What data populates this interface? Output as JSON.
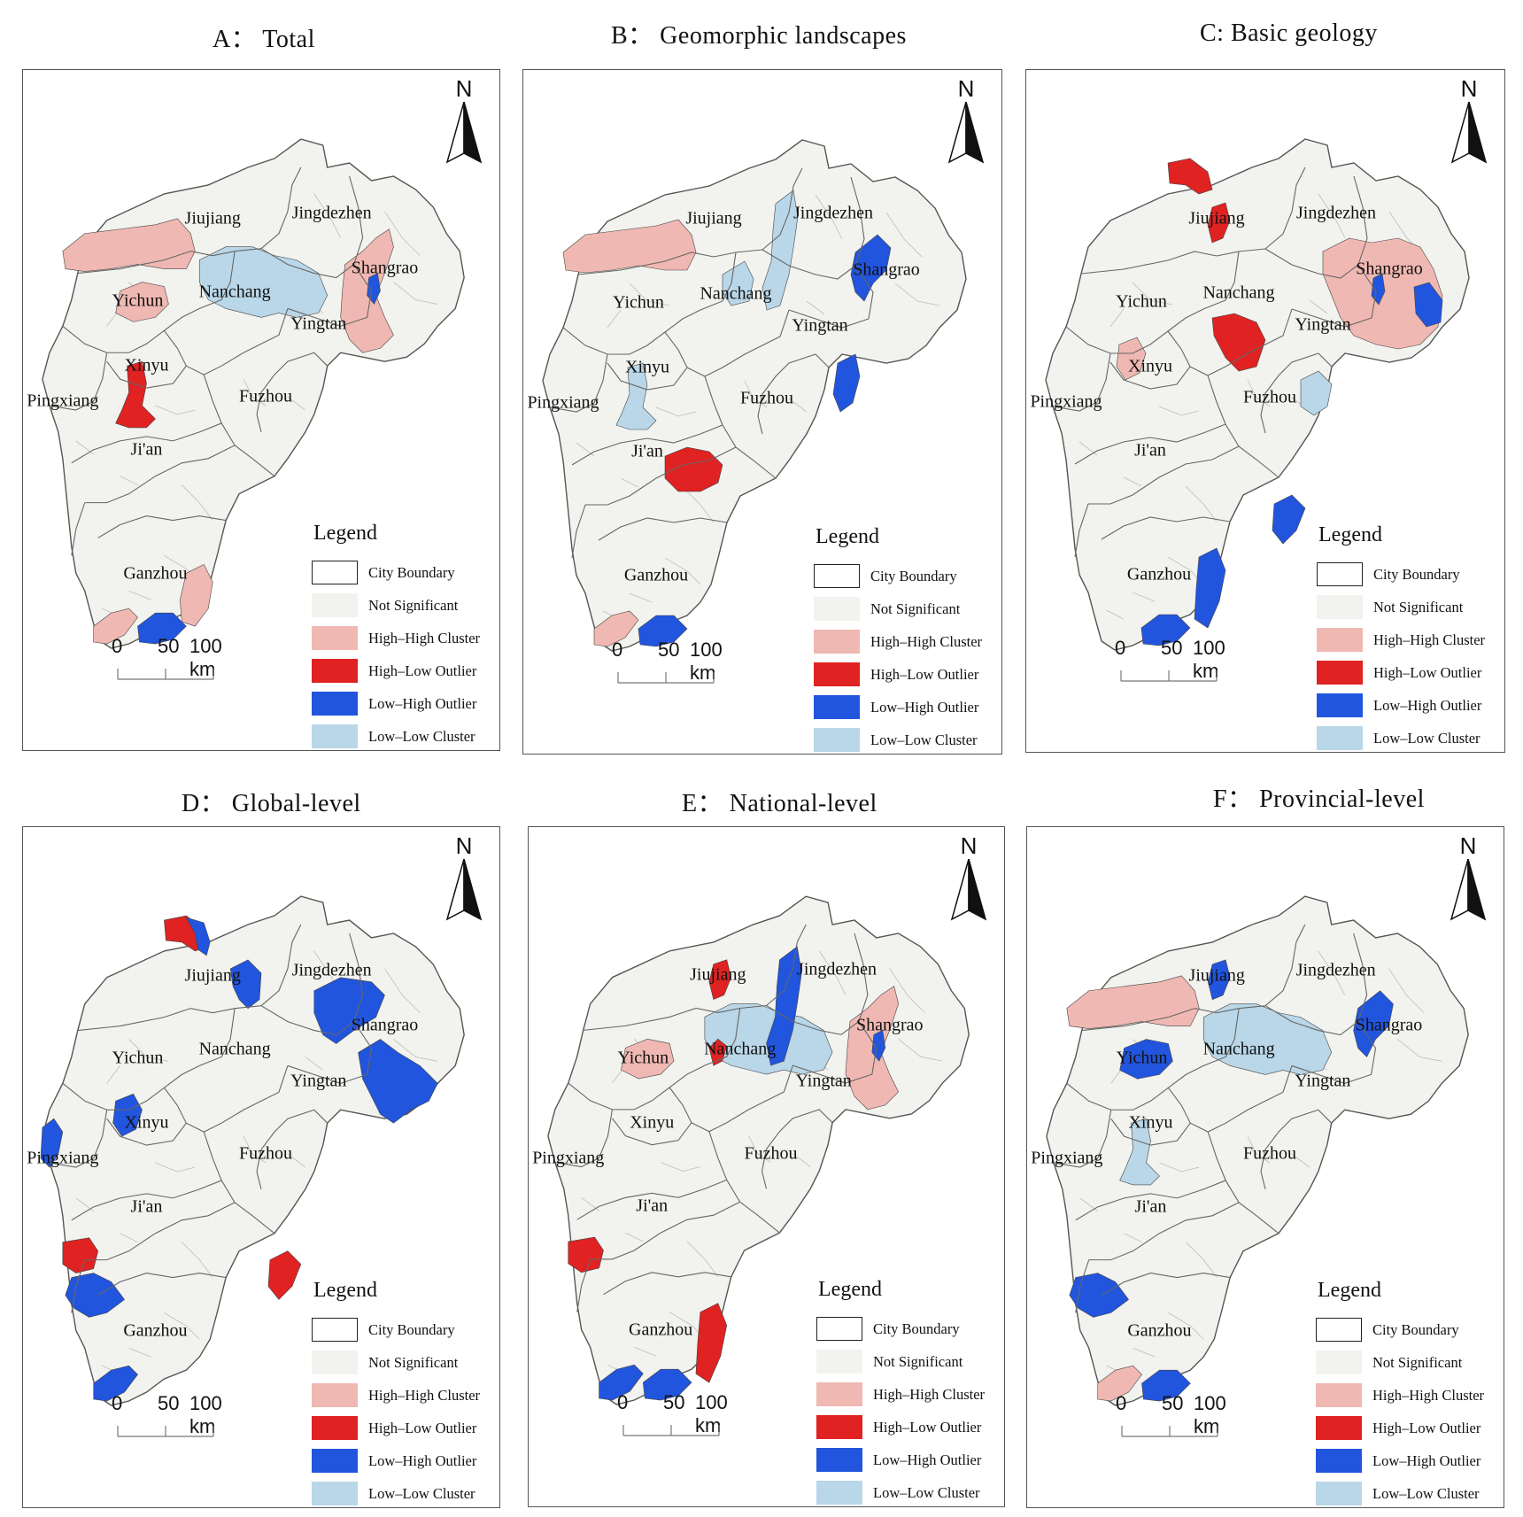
{
  "legend_title": "Legend",
  "legend_items": [
    {
      "label": "City Boundary",
      "color": "#ffffff"
    },
    {
      "label": "Not Significant",
      "color": "#f2f2ef"
    },
    {
      "label": "High–High Cluster",
      "color": "#f0b8b2"
    },
    {
      "label": "High–Low Outlier",
      "color": "#e02222"
    },
    {
      "label": "Low–High Outlier",
      "color": "#2255dd"
    },
    {
      "label": "Low–Low Cluster",
      "color": "#b9d7e8"
    }
  ],
  "north_label": "N",
  "scale_labels": [
    "0",
    "50",
    "100 km"
  ],
  "cities": {
    "jiujiang": "Jiujiang",
    "jingdezhen": "Jingdezhen",
    "nanchang": "Nanchang",
    "shangrao": "Shangrao",
    "yichun": "Yichun",
    "yingtan": "Yingtan",
    "xinyu": "Xinyu",
    "pingxiang": "Pingxiang",
    "fuzhou": "Fuzhou",
    "jian": "Ji'an",
    "ganzhou": "Ganzhou"
  },
  "panels": [
    {
      "title": "A： Total",
      "regions": [
        {
          "name": "west-jiujiang",
          "cls": "hh"
        },
        {
          "name": "yichun-north",
          "cls": "hh"
        },
        {
          "name": "nanchang-area",
          "cls": "ll"
        },
        {
          "name": "shangrao-west",
          "cls": "hh"
        },
        {
          "name": "shangrao-core",
          "cls": "lh"
        },
        {
          "name": "jian-center",
          "cls": "hl"
        },
        {
          "name": "ganzhou-southeast",
          "cls": "hh"
        },
        {
          "name": "ganzhou-southwest",
          "cls": "hh"
        },
        {
          "name": "ganzhou-south",
          "cls": "lh"
        }
      ]
    },
    {
      "title": "B： Geomorphic landscapes",
      "regions": [
        {
          "name": "west-jiujiang",
          "cls": "hh"
        },
        {
          "name": "jingdezhen-west",
          "cls": "ll"
        },
        {
          "name": "nanchang-east",
          "cls": "ll"
        },
        {
          "name": "shangrao-north",
          "cls": "lh"
        },
        {
          "name": "fuzhou-east",
          "cls": "lh"
        },
        {
          "name": "jian-center",
          "cls": "ll"
        },
        {
          "name": "ganzhou-north",
          "cls": "hl"
        },
        {
          "name": "ganzhou-southwest",
          "cls": "hh"
        },
        {
          "name": "ganzhou-south",
          "cls": "lh"
        }
      ]
    },
    {
      "title": "C: Basic geology",
      "regions": [
        {
          "name": "jiujiang-north",
          "cls": "hl"
        },
        {
          "name": "jiujiang-center",
          "cls": "hl"
        },
        {
          "name": "shangrao-wide",
          "cls": "hh"
        },
        {
          "name": "shangrao-core",
          "cls": "lh"
        },
        {
          "name": "shangrao-east",
          "cls": "lh"
        },
        {
          "name": "nanchang-south",
          "cls": "hl"
        },
        {
          "name": "xinyu-area",
          "cls": "hh"
        },
        {
          "name": "fuzhou-center",
          "cls": "ll"
        },
        {
          "name": "ganzhou-east",
          "cls": "lh"
        },
        {
          "name": "ganzhou-center",
          "cls": "lh"
        },
        {
          "name": "ganzhou-south",
          "cls": "lh"
        }
      ]
    },
    {
      "title": "D： Global-level",
      "regions": [
        {
          "name": "jiujiang-north",
          "cls": "hl"
        },
        {
          "name": "jiujiang-north-b",
          "cls": "lh"
        },
        {
          "name": "jiujiang-east",
          "cls": "lh"
        },
        {
          "name": "jingdezhen-area",
          "cls": "lh"
        },
        {
          "name": "shangrao-south",
          "cls": "lh"
        },
        {
          "name": "xinyu-area",
          "cls": "lh"
        },
        {
          "name": "pingxiang-area",
          "cls": "lh"
        },
        {
          "name": "jian-southwest",
          "cls": "hl"
        },
        {
          "name": "ganzhou-west",
          "cls": "lh"
        },
        {
          "name": "ganzhou-east",
          "cls": "hl"
        },
        {
          "name": "ganzhou-southwest",
          "cls": "lh"
        }
      ]
    },
    {
      "title": "E： National-level",
      "regions": [
        {
          "name": "jiujiang-center",
          "cls": "hl"
        },
        {
          "name": "yichun-north",
          "cls": "hh"
        },
        {
          "name": "yichun-west",
          "cls": "lh"
        },
        {
          "name": "nanchang-area",
          "cls": "ll"
        },
        {
          "name": "nanchang-core",
          "cls": "hl"
        },
        {
          "name": "jingdezhen-west",
          "cls": "lh"
        },
        {
          "name": "shangrao-west",
          "cls": "hh"
        },
        {
          "name": "shangrao-core",
          "cls": "lh"
        },
        {
          "name": "jian-southwest",
          "cls": "hl"
        },
        {
          "name": "ganzhou-center",
          "cls": "hl"
        },
        {
          "name": "ganzhou-south",
          "cls": "lh"
        },
        {
          "name": "ganzhou-southwest",
          "cls": "lh"
        }
      ]
    },
    {
      "title": "F： Provincial-level",
      "regions": [
        {
          "name": "west-jiujiang",
          "cls": "hh"
        },
        {
          "name": "jiujiang-center",
          "cls": "lh"
        },
        {
          "name": "yichun-north",
          "cls": "lh"
        },
        {
          "name": "nanchang-area",
          "cls": "ll"
        },
        {
          "name": "shangrao-north",
          "cls": "lh"
        },
        {
          "name": "jian-center",
          "cls": "ll"
        },
        {
          "name": "ganzhou-southwest",
          "cls": "hh"
        },
        {
          "name": "ganzhou-south",
          "cls": "lh"
        },
        {
          "name": "ganzhou-west",
          "cls": "lh"
        }
      ]
    }
  ]
}
